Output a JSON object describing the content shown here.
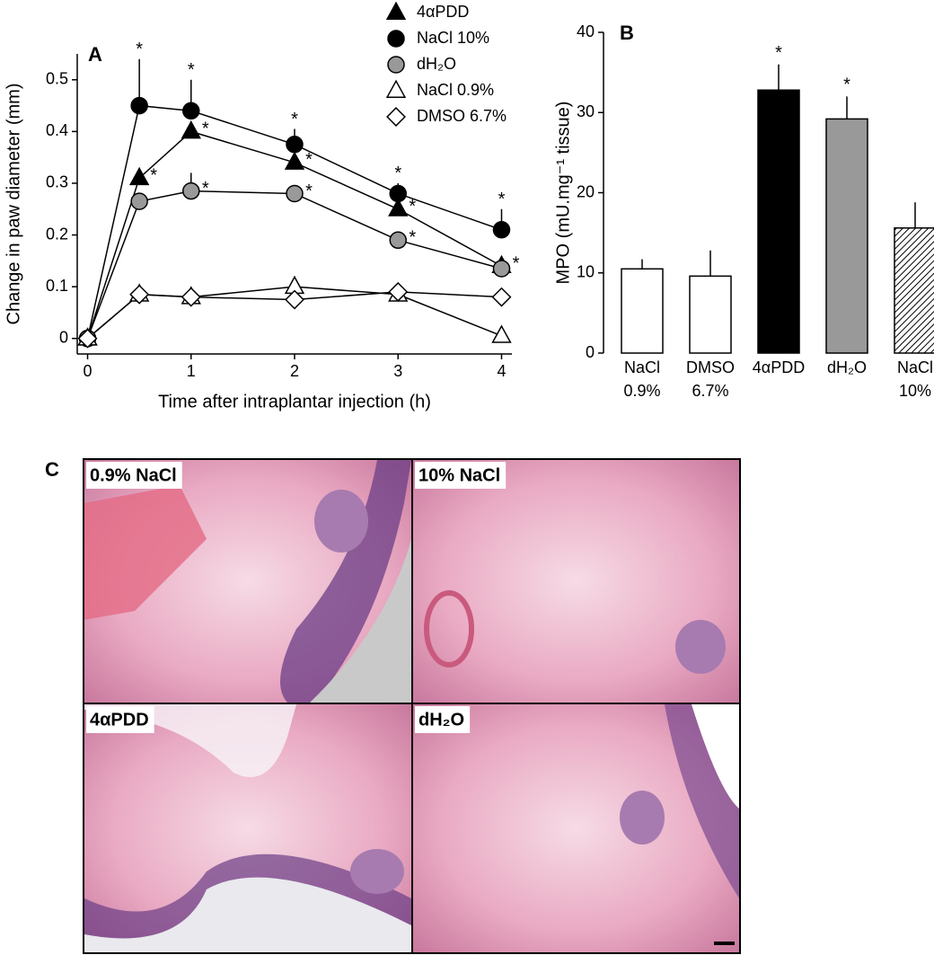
{
  "chart_data": [
    {
      "type": "line",
      "panel_label": "A",
      "x_label": "Time after intraplantar injection (h)",
      "y_label": "Change in paw diameter (mm)",
      "x": [
        0,
        0.5,
        1,
        2,
        3,
        4
      ],
      "xlim": [
        -0.1,
        4.1
      ],
      "xticks": [
        0,
        1,
        2,
        3,
        4
      ],
      "ylim": [
        -0.03,
        0.55
      ],
      "yticks": [
        0,
        0.1,
        0.2,
        0.3,
        0.4,
        0.5
      ],
      "legend": "top",
      "series": [
        {
          "name": "4αPDD",
          "marker": "triangle",
          "color": "#000000",
          "values": [
            0,
            0.31,
            0.4,
            0.34,
            0.25,
            0.14
          ],
          "errors": [
            0.005,
            0.02,
            0.02,
            0.015,
            0.015,
            0.015
          ],
          "significance": [
            null,
            "*",
            "*",
            "*",
            "*",
            "*"
          ]
        },
        {
          "name": "NaCl 10%",
          "marker": "circle",
          "color": "#000000",
          "values": [
            0,
            0.45,
            0.44,
            0.375,
            0.28,
            0.21
          ],
          "errors": [
            0.005,
            0.09,
            0.06,
            0.03,
            0.02,
            0.04
          ],
          "significance": [
            null,
            "*",
            "*",
            "*",
            "*",
            "*"
          ]
        },
        {
          "name": "dH₂O",
          "marker": "circle",
          "color": "#999999",
          "values": [
            0,
            0.265,
            0.285,
            0.28,
            0.19,
            0.135
          ],
          "errors": [
            0.005,
            0.01,
            0.035,
            0.01,
            0.01,
            0.01
          ],
          "significance": [
            null,
            null,
            "*",
            "*",
            "*",
            null
          ]
        },
        {
          "name": "NaCl 0.9%",
          "marker": "triangle",
          "color": "#ffffff",
          "values": [
            0,
            0.085,
            0.08,
            0.1,
            0.085,
            0.005
          ],
          "errors": [
            0.005,
            0.005,
            0.005,
            0.02,
            0.01,
            0.005
          ],
          "significance": [
            null,
            null,
            null,
            null,
            null,
            null
          ]
        },
        {
          "name": "DMSO 6.7%",
          "marker": "diamond",
          "color": "#ffffff",
          "values": [
            0,
            0.085,
            0.08,
            0.075,
            0.09,
            0.08
          ],
          "errors": [
            0.005,
            0.005,
            0.005,
            0.005,
            0.005,
            0.005
          ],
          "significance": [
            null,
            null,
            null,
            null,
            null,
            null
          ]
        }
      ]
    },
    {
      "type": "bar",
      "panel_label": "B",
      "y_label": "MPO (mU.mg⁻¹ tissue)",
      "categories": [
        "NaCl\n0.9%",
        "DMSO\n6.7%",
        "4αPDD",
        "dH₂O",
        "NaCl\n10%"
      ],
      "values": [
        10.5,
        9.6,
        32.8,
        29.2,
        15.6
      ],
      "errors": [
        1.2,
        3.2,
        3.2,
        2.8,
        3.2
      ],
      "colors": [
        "#ffffff",
        "#ffffff",
        "#000000",
        "#999999",
        "#ffffff"
      ],
      "hatched": [
        false,
        false,
        false,
        false,
        true
      ],
      "significance": [
        null,
        null,
        "*",
        "*",
        null
      ],
      "ylim": [
        0,
        40
      ],
      "yticks": [
        0,
        10,
        20,
        30,
        40
      ]
    }
  ],
  "histology": {
    "panel_label": "C",
    "images": [
      "0.9% NaCl",
      "10% NaCl",
      "4αPDD",
      "dH₂O"
    ]
  }
}
